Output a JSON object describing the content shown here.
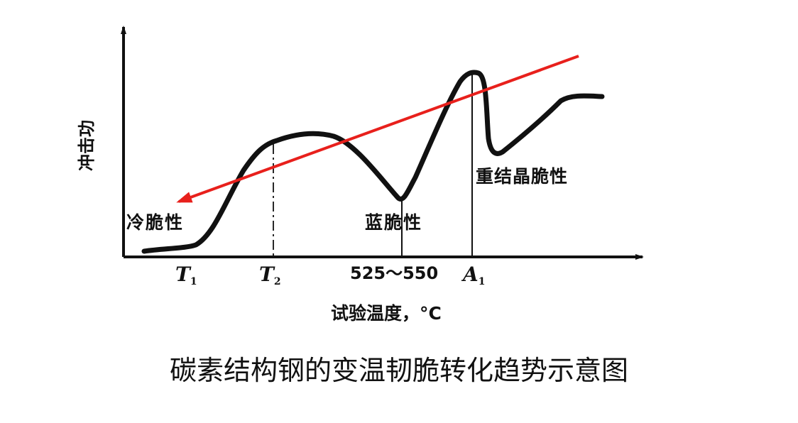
{
  "diagram": {
    "y_axis_label": "冲击功",
    "x_axis_label": "试验温度，°C",
    "caption": "碳素结构钢的变温韧脆转化趋势示意图",
    "ticks": {
      "t1": "T",
      "t1_sub": "1",
      "t2": "T",
      "t2_sub": "2",
      "range": "525～550",
      "a1": "A",
      "a1_sub": "1"
    },
    "regions": {
      "cold": "冷脆性",
      "blue": "蓝脆性",
      "recrystal": "重结晶脆性"
    },
    "colors": {
      "curve": "#111111",
      "trend_arrow": "#e8201c"
    }
  }
}
